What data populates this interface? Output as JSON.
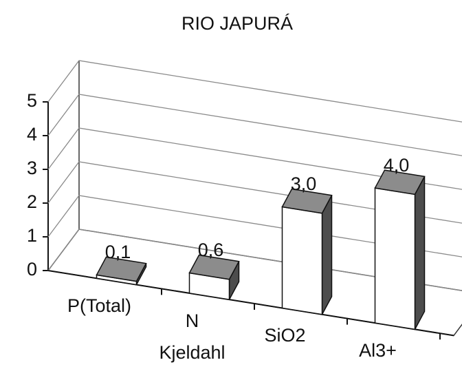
{
  "chart_data": {
    "type": "bar3d",
    "title": "RIO JAPURÁ",
    "categories": [
      "P(Total)",
      "N Kjeldahl",
      "SiO2",
      "Al3+"
    ],
    "values": [
      0.1,
      0.6,
      3.0,
      4.0
    ],
    "value_labels": [
      "0,1",
      "0,6",
      "3,0",
      "4,0"
    ],
    "ylim": [
      0,
      5
    ],
    "yticks": [
      0,
      1,
      2,
      3,
      4,
      5
    ],
    "grid": true,
    "colors": {
      "front": "#ffffff",
      "top": "#8c8c8c",
      "side": "#4d4d4d"
    }
  }
}
